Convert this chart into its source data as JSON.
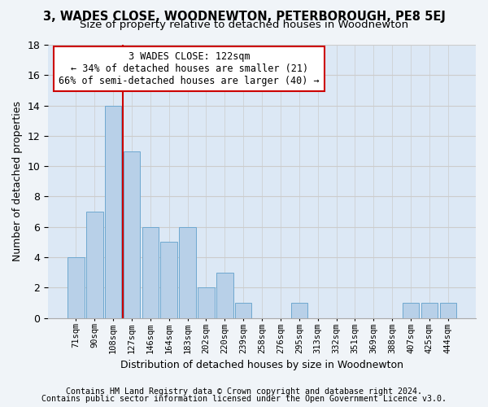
{
  "title": "3, WADES CLOSE, WOODNEWTON, PETERBOROUGH, PE8 5EJ",
  "subtitle": "Size of property relative to detached houses in Woodnewton",
  "xlabel": "Distribution of detached houses by size in Woodnewton",
  "ylabel": "Number of detached properties",
  "footer1": "Contains HM Land Registry data © Crown copyright and database right 2024.",
  "footer2": "Contains public sector information licensed under the Open Government Licence v3.0.",
  "categories": [
    "71sqm",
    "90sqm",
    "108sqm",
    "127sqm",
    "146sqm",
    "164sqm",
    "183sqm",
    "202sqm",
    "220sqm",
    "239sqm",
    "258sqm",
    "276sqm",
    "295sqm",
    "313sqm",
    "332sqm",
    "351sqm",
    "369sqm",
    "388sqm",
    "407sqm",
    "425sqm",
    "444sqm"
  ],
  "values": [
    4,
    7,
    14,
    11,
    6,
    5,
    6,
    2,
    3,
    1,
    0,
    0,
    1,
    0,
    0,
    0,
    0,
    0,
    1,
    1,
    1
  ],
  "bar_color": "#b8d0e8",
  "bar_edge_color": "#6fa8d0",
  "vline_color": "#cc0000",
  "annotation_line1": "3 WADES CLOSE: 122sqm",
  "annotation_line2": "← 34% of detached houses are smaller (21)",
  "annotation_line3": "66% of semi-detached houses are larger (40) →",
  "annotation_box_color": "#ffffff",
  "annotation_box_edge_color": "#cc0000",
  "ylim": [
    0,
    18
  ],
  "yticks": [
    0,
    2,
    4,
    6,
    8,
    10,
    12,
    14,
    16,
    18
  ],
  "grid_color": "#cccccc",
  "bg_color": "#dce8f5",
  "fig_bg_color": "#f0f4f8",
  "title_fontsize": 10.5,
  "subtitle_fontsize": 9.5,
  "annotation_fontsize": 8.5
}
